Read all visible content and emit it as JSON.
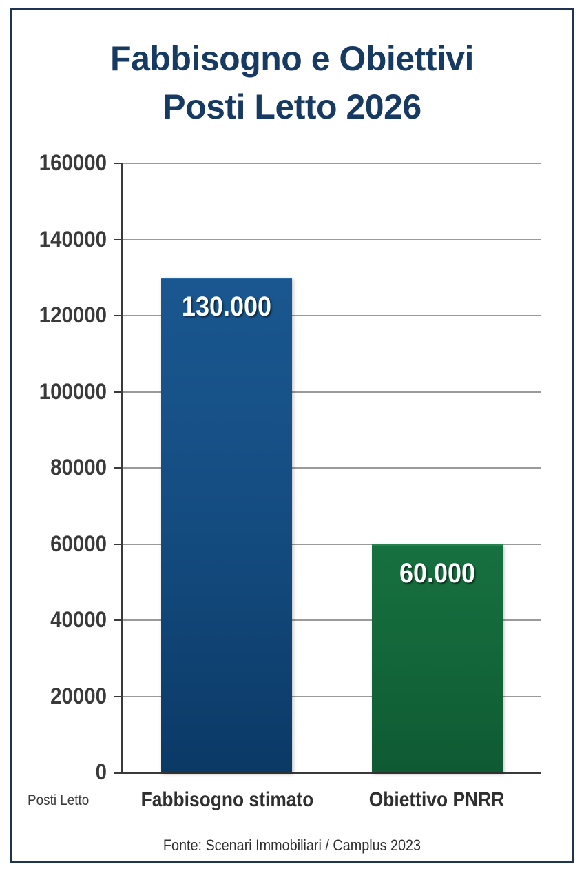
{
  "title": {
    "line1": "Fabbisogno e Obiettivi",
    "line2": "Posti Letto 2026"
  },
  "y_axis": {
    "unit_label": "Posti Letto",
    "ticks": [
      "160000",
      "140000",
      "120000",
      "100000",
      "80000",
      "60000",
      "40000",
      "20000",
      "0"
    ]
  },
  "bars": [
    {
      "category": "Fabbisogno stimato",
      "value_label": "130.000",
      "value": 130000,
      "color": "#144c80"
    },
    {
      "category": "Obiettivo PNRR",
      "value_label": "60.000",
      "value": 60000,
      "color": "#126438"
    }
  ],
  "source": "Fonte: Scenari Immobiliari / Camplus 2023",
  "colors": {
    "title": "#173a63",
    "frame": "#1f3452",
    "bar_blue": "#144c80",
    "bar_green": "#126438",
    "axis": "#3a3a3a",
    "grid": "#9a9a9a"
  },
  "chart_data": {
    "type": "bar",
    "title": "Fabbisogno e Obiettivi Posti Letto 2026",
    "categories": [
      "Fabbisogno stimato",
      "Obiettivo PNRR"
    ],
    "values": [
      130000,
      60000
    ],
    "data_labels": [
      "130.000",
      "60.000"
    ],
    "xlabel": "",
    "ylabel": "Posti Letto",
    "ylim": [
      0,
      160000
    ],
    "yticks": [
      0,
      20000,
      40000,
      60000,
      80000,
      100000,
      120000,
      140000,
      160000
    ],
    "grid": true,
    "legend": null,
    "bar_colors": [
      "#144c80",
      "#126438"
    ],
    "source": "Fonte: Scenari Immobiliari / Camplus 2023"
  }
}
